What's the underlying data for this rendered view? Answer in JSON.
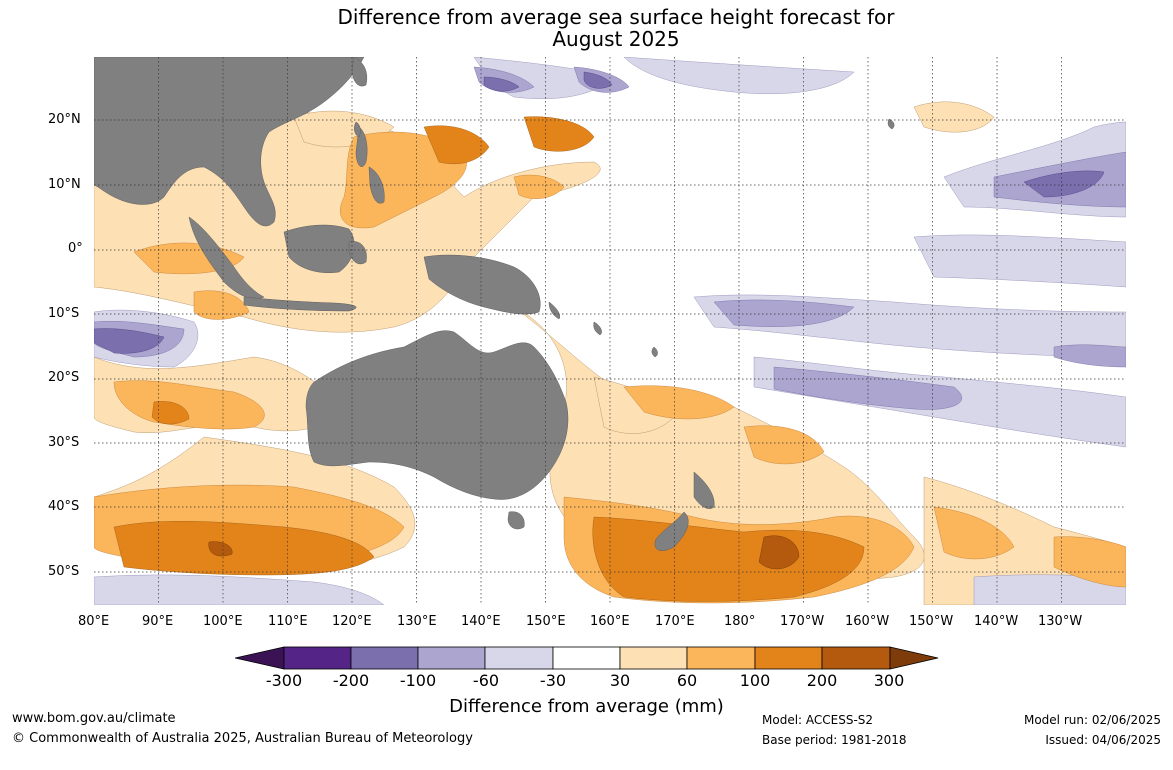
{
  "title_line1": "Difference from average sea surface height forecast for",
  "title_line2": "August 2025",
  "map": {
    "projection": "equirectangular",
    "lon_range": [
      80,
      240
    ],
    "lat_range": [
      -55,
      30
    ],
    "graticule": "dotted",
    "land_color": "#808080",
    "lon_labels": [
      "80°E",
      "90°E",
      "100°E",
      "110°E",
      "120°E",
      "130°E",
      "140°E",
      "150°E",
      "160°E",
      "170°E",
      "180°",
      "170°W",
      "160°W",
      "150°W",
      "140°W",
      "130°W"
    ],
    "lat_labels": [
      "20°N",
      "10°N",
      "0°",
      "10°S",
      "20°S",
      "30°S",
      "40°S",
      "50°S"
    ]
  },
  "colorbar": {
    "title": "Difference from average (mm)",
    "ticks": [
      "-300",
      "-200",
      "-100",
      "-60",
      "-30",
      "30",
      "60",
      "100",
      "200",
      "300"
    ],
    "colors": {
      "lt_-300": "#3b1355",
      "-300_-200": "#542486",
      "-200_-100": "#7b6fae",
      "-100_-60": "#aba5cf",
      "-60_-30": "#d8d7ea",
      "-30_30": "#ffffff",
      "30_60": "#fde0b3",
      "60_100": "#fbb55a",
      "100_200": "#e3841a",
      "200_300": "#b35a0e",
      "gt_300": "#7d3c0a"
    }
  },
  "footer": {
    "website": "www.bom.gov.au/climate",
    "copyright": "© Commonwealth of Australia 2025, Australian Bureau of Meteorology",
    "model": "Model: ACCESS-S2",
    "base_period": "Base period: 1981-2018",
    "model_run": "Model run: 02/06/2025",
    "issued": "Issued: 04/06/2025"
  }
}
